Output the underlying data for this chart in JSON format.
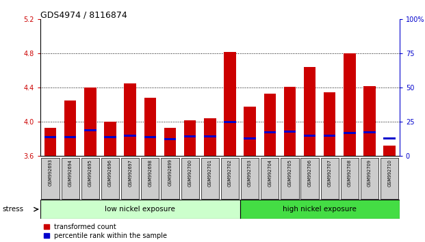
{
  "title": "GDS4974 / 8116874",
  "samples": [
    "GSM992693",
    "GSM992694",
    "GSM992695",
    "GSM992696",
    "GSM992697",
    "GSM992698",
    "GSM992699",
    "GSM992700",
    "GSM992701",
    "GSM992702",
    "GSM992703",
    "GSM992704",
    "GSM992705",
    "GSM992706",
    "GSM992707",
    "GSM992708",
    "GSM992709",
    "GSM992710"
  ],
  "red_values": [
    3.93,
    4.25,
    4.4,
    4.0,
    4.45,
    4.28,
    3.93,
    4.02,
    4.04,
    4.82,
    4.18,
    4.33,
    4.41,
    4.64,
    4.35,
    4.8,
    4.42,
    3.72
  ],
  "blue_values": [
    3.82,
    3.82,
    3.9,
    3.82,
    3.84,
    3.82,
    3.8,
    3.83,
    3.83,
    4.0,
    3.81,
    3.88,
    3.89,
    3.84,
    3.84,
    3.87,
    3.88,
    3.81
  ],
  "y_min": 3.6,
  "y_max": 5.2,
  "y_ticks_left": [
    3.6,
    4.0,
    4.4,
    4.8,
    5.2
  ],
  "y_ticks_right": [
    0,
    25,
    50,
    75,
    100
  ],
  "low_nickel_count": 10,
  "group_labels": [
    "low nickel exposure",
    "high nickel exposure"
  ],
  "low_color": "#ccffcc",
  "high_color": "#44dd44",
  "bar_color_red": "#cc0000",
  "bar_color_blue": "#0000cc",
  "bar_width": 0.6,
  "bg_color": "#ffffff",
  "label_color_left": "#cc0000",
  "label_color_right": "#0000cc"
}
